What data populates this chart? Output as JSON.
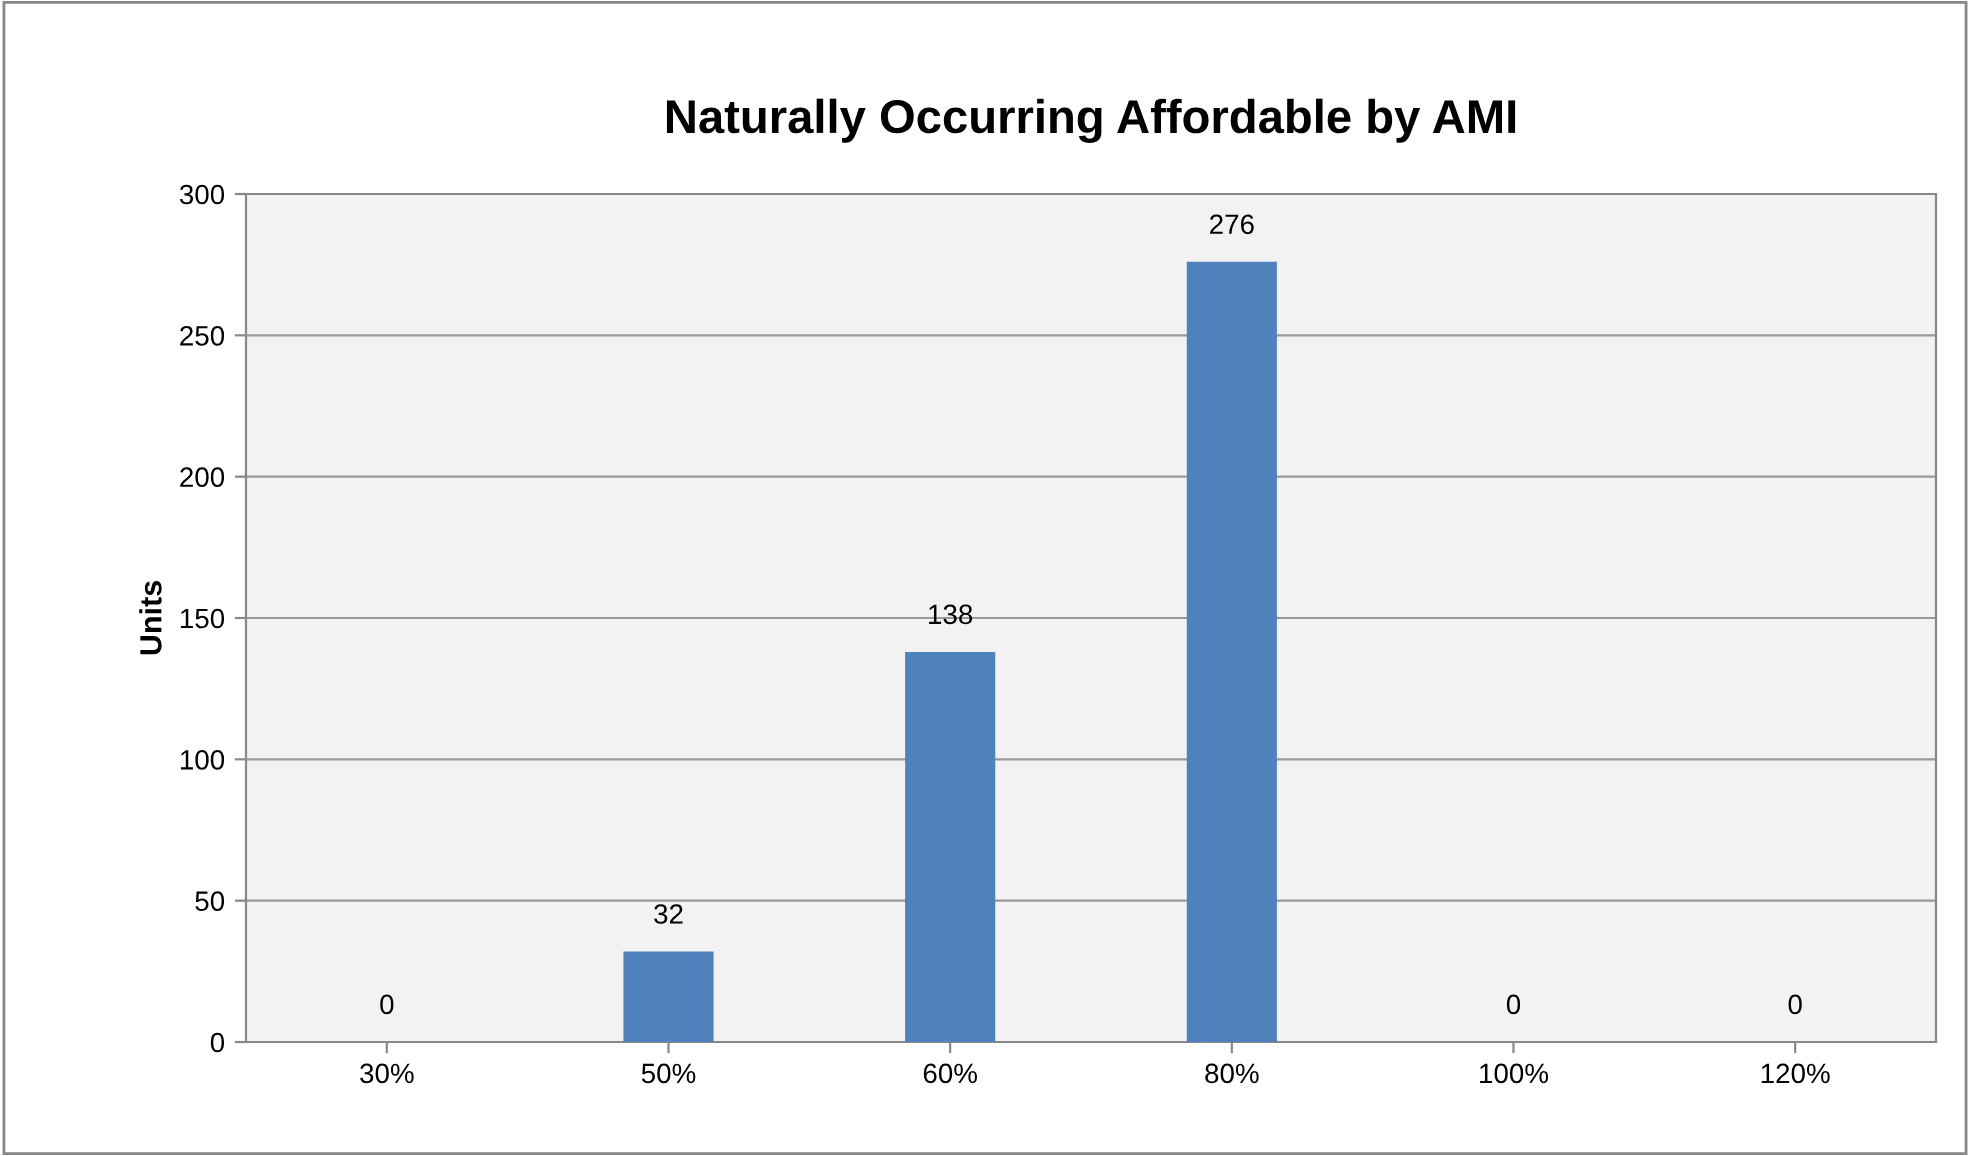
{
  "chart_data": {
    "type": "bar",
    "title": "Naturally Occurring Affordable by AMI",
    "ylabel": "Units",
    "categories": [
      "30%",
      "50%",
      "60%",
      "80%",
      "100%",
      "120%"
    ],
    "series": [
      {
        "color": "#4f81bd",
        "values": [
          0,
          32,
          138,
          276,
          0,
          0
        ]
      }
    ],
    "ylim": [
      0,
      300
    ],
    "yticks": [
      0,
      50,
      100,
      150,
      200,
      250,
      300
    ],
    "grid": "y",
    "data_labels": true,
    "legend": false
  }
}
